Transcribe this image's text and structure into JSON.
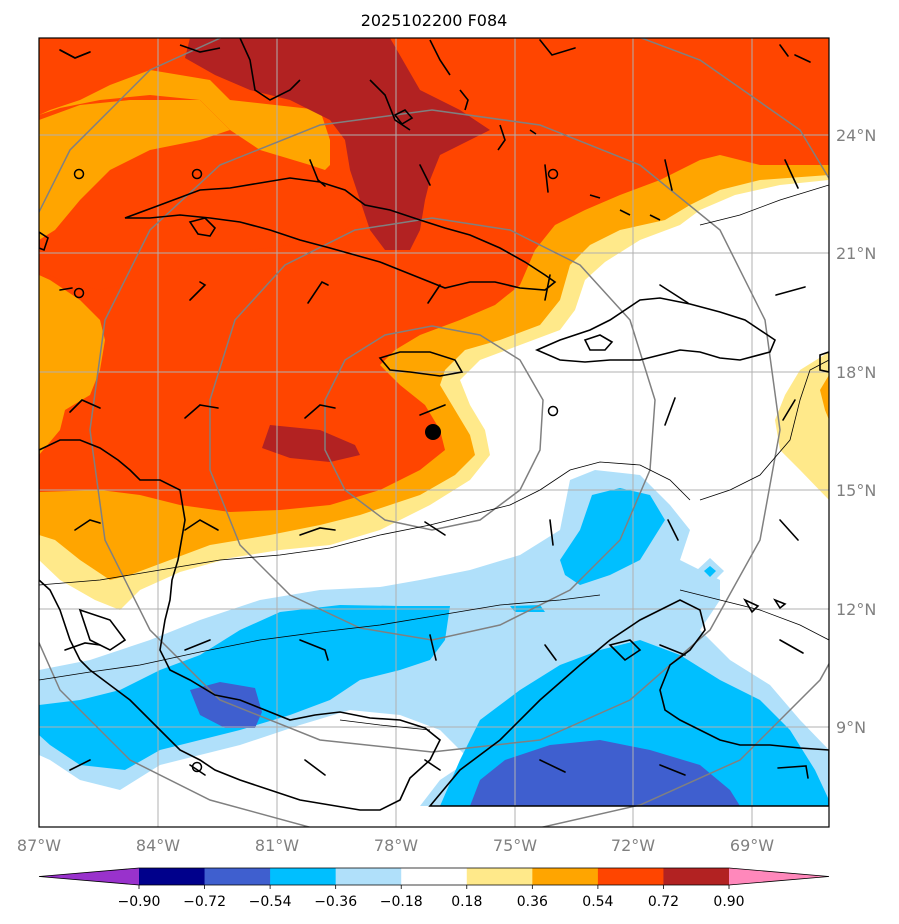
{
  "title": "2025102200 F084",
  "lon_ticks": [
    "87°W",
    "84°W",
    "81°W",
    "78°W",
    "75°W",
    "72°W",
    "69°W"
  ],
  "lat_ticks": [
    "24°N",
    "21°N",
    "18°N",
    "15°N",
    "12°N",
    "9°N"
  ],
  "colorbar": {
    "ticks": [
      "−0.90",
      "−0.72",
      "−0.54",
      "−0.36",
      "−0.18",
      "0.18",
      "0.36",
      "0.54",
      "0.72",
      "0.90"
    ],
    "colors": [
      "#9932cc",
      "#00008b",
      "#3f5fcf",
      "#00bfff",
      "#b0e0fa",
      "#ffffff",
      "#ffe98a",
      "#ffa500",
      "#ff4500",
      "#b22222",
      "#ff88bb"
    ]
  },
  "fill_colors": {
    "pos_018": "#ffe98a",
    "pos_036": "#ffa500",
    "pos_054": "#ff4500",
    "pos_072": "#b22222",
    "neg_018": "#b0e0fa",
    "neg_036": "#00bfff",
    "neg_054": "#3f5fcf"
  },
  "storm_center": {
    "lon": -77.0,
    "lat": 16.5
  }
}
